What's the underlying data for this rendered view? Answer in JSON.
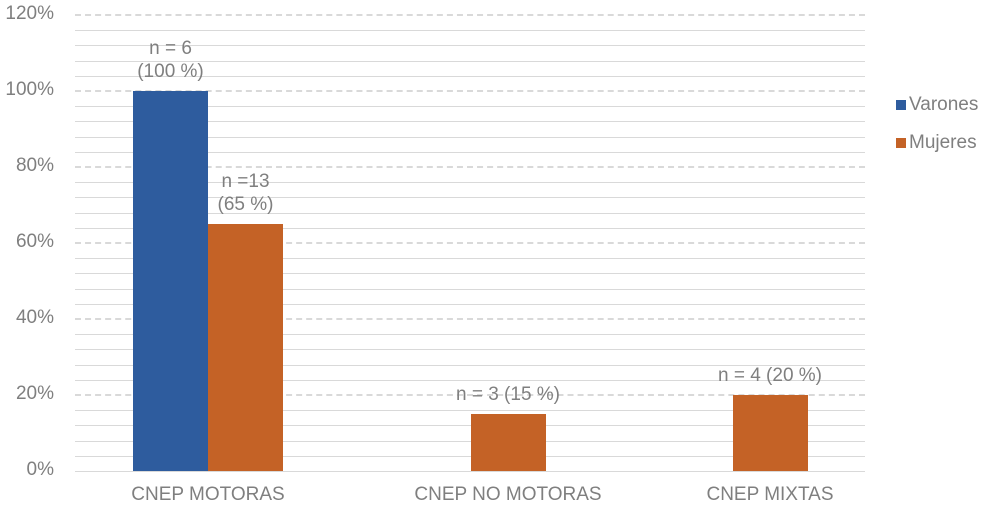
{
  "chart_data": {
    "type": "bar",
    "title": "",
    "xlabel": "",
    "ylabel": "",
    "ylim": [
      0,
      120
    ],
    "yticks": [
      "0%",
      "20%",
      "40%",
      "60%",
      "80%",
      "100%",
      "120%"
    ],
    "grid": true,
    "legend_position": "right",
    "categories": [
      "CNEP MOTORAS",
      "CNEP NO MOTORAS",
      "CNEP MIXTAS"
    ],
    "series": [
      {
        "name": "Varones",
        "color": "#2e5c9e",
        "values": [
          100,
          0,
          0
        ]
      },
      {
        "name": "Mujeres",
        "color": "#c46226",
        "values": [
          65,
          15,
          20
        ]
      }
    ],
    "annotations": [
      {
        "category": "CNEP MOTORAS",
        "series": "Varones",
        "text": "n = 6\n(100 %)"
      },
      {
        "category": "CNEP MOTORAS",
        "series": "Mujeres",
        "text": "n =13\n(65 %)"
      },
      {
        "category": "CNEP NO MOTORAS",
        "series": "Mujeres",
        "text": "n = 3 (15 %)"
      },
      {
        "category": "CNEP MIXTAS",
        "series": "Mujeres",
        "text": "n = 4 (20 %)"
      }
    ]
  },
  "legend": {
    "items": [
      {
        "label": "Varones",
        "color": "#2e5c9e"
      },
      {
        "label": "Mujeres",
        "color": "#c46226"
      }
    ]
  }
}
